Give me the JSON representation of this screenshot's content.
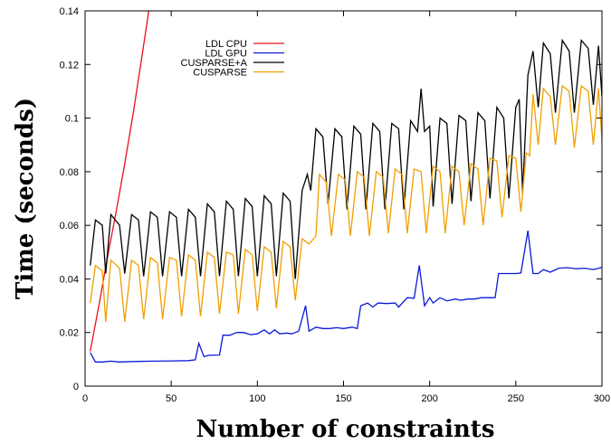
{
  "chart_data": {
    "type": "line",
    "title": "",
    "xlabel": "Number of constraints",
    "ylabel": "Time (seconds)",
    "xlim": [
      0,
      300
    ],
    "ylim": [
      0,
      0.14
    ],
    "xticks": [
      "0",
      "50",
      "100",
      "150",
      "200",
      "250",
      "300"
    ],
    "yticks": [
      "0",
      "0.02",
      "0.04",
      "0.06",
      "0.08",
      "0.1",
      "0.12",
      "0.14"
    ],
    "grid": false,
    "legend_position": "top-left",
    "series": [
      {
        "name": "LDL CPU",
        "color": "#e8101a",
        "points": [
          [
            3,
            0.013
          ],
          [
            8,
            0.03
          ],
          [
            13,
            0.048
          ],
          [
            18,
            0.065
          ],
          [
            23,
            0.083
          ],
          [
            28,
            0.102
          ],
          [
            33,
            0.123
          ],
          [
            37,
            0.14
          ]
        ]
      },
      {
        "name": "LDL GPU",
        "color": "#0b19d6",
        "points": [
          [
            3,
            0.0125
          ],
          [
            6,
            0.009
          ],
          [
            10,
            0.009
          ],
          [
            15,
            0.0093
          ],
          [
            20,
            0.009
          ],
          [
            30,
            0.0092
          ],
          [
            40,
            0.0093
          ],
          [
            50,
            0.0094
          ],
          [
            60,
            0.0095
          ],
          [
            64,
            0.0098
          ],
          [
            66,
            0.016
          ],
          [
            69,
            0.011
          ],
          [
            72,
            0.0115
          ],
          [
            78,
            0.0116
          ],
          [
            80,
            0.019
          ],
          [
            84,
            0.019
          ],
          [
            88,
            0.02
          ],
          [
            92,
            0.02
          ],
          [
            96,
            0.0192
          ],
          [
            100,
            0.0195
          ],
          [
            104,
            0.021
          ],
          [
            107,
            0.0195
          ],
          [
            110,
            0.021
          ],
          [
            113,
            0.0195
          ],
          [
            117,
            0.0198
          ],
          [
            120,
            0.0195
          ],
          [
            124,
            0.0205
          ],
          [
            128,
            0.03
          ],
          [
            130,
            0.0205
          ],
          [
            134,
            0.022
          ],
          [
            138,
            0.0215
          ],
          [
            142,
            0.0215
          ],
          [
            146,
            0.0218
          ],
          [
            150,
            0.0215
          ],
          [
            155,
            0.022
          ],
          [
            158,
            0.0215
          ],
          [
            160,
            0.03
          ],
          [
            164,
            0.031
          ],
          [
            167,
            0.0295
          ],
          [
            170,
            0.031
          ],
          [
            175,
            0.0308
          ],
          [
            180,
            0.031
          ],
          [
            182,
            0.0295
          ],
          [
            187,
            0.033
          ],
          [
            191,
            0.0328
          ],
          [
            194,
            0.045
          ],
          [
            197,
            0.03
          ],
          [
            200,
            0.033
          ],
          [
            202,
            0.031
          ],
          [
            206,
            0.033
          ],
          [
            210,
            0.0318
          ],
          [
            215,
            0.0325
          ],
          [
            218,
            0.032
          ],
          [
            222,
            0.0325
          ],
          [
            226,
            0.0325
          ],
          [
            230,
            0.033
          ],
          [
            235,
            0.033
          ],
          [
            238,
            0.033
          ],
          [
            240,
            0.042
          ],
          [
            245,
            0.042
          ],
          [
            250,
            0.042
          ],
          [
            253,
            0.0422
          ],
          [
            257,
            0.058
          ],
          [
            260,
            0.042
          ],
          [
            263,
            0.042
          ],
          [
            266,
            0.0435
          ],
          [
            270,
            0.0425
          ],
          [
            275,
            0.044
          ],
          [
            280,
            0.0442
          ],
          [
            285,
            0.0438
          ],
          [
            290,
            0.044
          ],
          [
            295,
            0.0435
          ],
          [
            300,
            0.0443
          ]
        ]
      },
      {
        "name": "CUSPARSE+A",
        "color": "#000000",
        "points": [
          [
            3,
            0.045
          ],
          [
            6,
            0.062
          ],
          [
            10,
            0.06
          ],
          [
            12,
            0.042
          ],
          [
            15,
            0.064
          ],
          [
            20,
            0.06
          ],
          [
            23,
            0.042
          ],
          [
            27,
            0.064
          ],
          [
            31,
            0.062
          ],
          [
            34,
            0.041
          ],
          [
            38,
            0.065
          ],
          [
            42,
            0.063
          ],
          [
            45,
            0.041
          ],
          [
            49,
            0.065
          ],
          [
            53,
            0.063
          ],
          [
            56,
            0.041
          ],
          [
            60,
            0.066
          ],
          [
            64,
            0.063
          ],
          [
            67,
            0.041
          ],
          [
            71,
            0.068
          ],
          [
            75,
            0.065
          ],
          [
            78,
            0.041
          ],
          [
            82,
            0.069
          ],
          [
            86,
            0.066
          ],
          [
            89,
            0.041
          ],
          [
            93,
            0.07
          ],
          [
            97,
            0.067
          ],
          [
            100,
            0.041
          ],
          [
            104,
            0.071
          ],
          [
            108,
            0.068
          ],
          [
            111,
            0.041
          ],
          [
            115,
            0.072
          ],
          [
            119,
            0.069
          ],
          [
            122,
            0.04
          ],
          [
            126,
            0.073
          ],
          [
            129,
            0.079
          ],
          [
            131,
            0.073
          ],
          [
            134,
            0.096
          ],
          [
            138,
            0.093
          ],
          [
            141,
            0.068
          ],
          [
            145,
            0.096
          ],
          [
            149,
            0.093
          ],
          [
            152,
            0.066
          ],
          [
            156,
            0.097
          ],
          [
            160,
            0.094
          ],
          [
            163,
            0.066
          ],
          [
            167,
            0.098
          ],
          [
            171,
            0.095
          ],
          [
            174,
            0.066
          ],
          [
            178,
            0.098
          ],
          [
            182,
            0.096
          ],
          [
            185,
            0.066
          ],
          [
            189,
            0.099
          ],
          [
            193,
            0.095
          ],
          [
            195,
            0.111
          ],
          [
            197,
            0.095
          ],
          [
            200,
            0.097
          ],
          [
            202,
            0.067
          ],
          [
            206,
            0.1
          ],
          [
            210,
            0.098
          ],
          [
            213,
            0.068
          ],
          [
            217,
            0.101
          ],
          [
            221,
            0.099
          ],
          [
            224,
            0.069
          ],
          [
            228,
            0.102
          ],
          [
            232,
            0.099
          ],
          [
            235,
            0.07
          ],
          [
            239,
            0.104
          ],
          [
            243,
            0.1
          ],
          [
            246,
            0.07
          ],
          [
            250,
            0.104
          ],
          [
            252,
            0.107
          ],
          [
            254,
            0.072
          ],
          [
            257,
            0.116
          ],
          [
            260,
            0.125
          ],
          [
            263,
            0.104
          ],
          [
            266,
            0.128
          ],
          [
            270,
            0.124
          ],
          [
            273,
            0.102
          ],
          [
            277,
            0.129
          ],
          [
            281,
            0.125
          ],
          [
            284,
            0.102
          ],
          [
            288,
            0.129
          ],
          [
            292,
            0.126
          ],
          [
            295,
            0.105
          ],
          [
            298,
            0.127
          ],
          [
            300,
            0.108
          ]
        ]
      },
      {
        "name": "CUSPARSE",
        "color": "#f0a000",
        "points": [
          [
            3,
            0.031
          ],
          [
            6,
            0.045
          ],
          [
            10,
            0.043
          ],
          [
            12,
            0.024
          ],
          [
            15,
            0.047
          ],
          [
            20,
            0.044
          ],
          [
            23,
            0.024
          ],
          [
            27,
            0.047
          ],
          [
            31,
            0.045
          ],
          [
            34,
            0.025
          ],
          [
            38,
            0.048
          ],
          [
            42,
            0.046
          ],
          [
            45,
            0.025
          ],
          [
            49,
            0.048
          ],
          [
            53,
            0.047
          ],
          [
            56,
            0.026
          ],
          [
            60,
            0.049
          ],
          [
            64,
            0.047
          ],
          [
            67,
            0.026
          ],
          [
            71,
            0.05
          ],
          [
            75,
            0.048
          ],
          [
            78,
            0.027
          ],
          [
            82,
            0.05
          ],
          [
            86,
            0.049
          ],
          [
            89,
            0.027
          ],
          [
            93,
            0.051
          ],
          [
            97,
            0.049
          ],
          [
            100,
            0.028
          ],
          [
            104,
            0.052
          ],
          [
            108,
            0.05
          ],
          [
            111,
            0.029
          ],
          [
            115,
            0.054
          ],
          [
            119,
            0.052
          ],
          [
            122,
            0.032
          ],
          [
            126,
            0.055
          ],
          [
            130,
            0.053
          ],
          [
            134,
            0.056
          ],
          [
            136,
            0.079
          ],
          [
            140,
            0.076
          ],
          [
            143,
            0.056
          ],
          [
            147,
            0.079
          ],
          [
            151,
            0.077
          ],
          [
            154,
            0.056
          ],
          [
            158,
            0.08
          ],
          [
            162,
            0.078
          ],
          [
            165,
            0.056
          ],
          [
            169,
            0.08
          ],
          [
            173,
            0.078
          ],
          [
            176,
            0.057
          ],
          [
            180,
            0.081
          ],
          [
            184,
            0.079
          ],
          [
            187,
            0.057
          ],
          [
            191,
            0.081
          ],
          [
            195,
            0.08
          ],
          [
            198,
            0.057
          ],
          [
            202,
            0.082
          ],
          [
            206,
            0.08
          ],
          [
            209,
            0.057
          ],
          [
            213,
            0.082
          ],
          [
            217,
            0.08
          ],
          [
            220,
            0.06
          ],
          [
            224,
            0.083
          ],
          [
            228,
            0.081
          ],
          [
            231,
            0.06
          ],
          [
            235,
            0.085
          ],
          [
            239,
            0.084
          ],
          [
            242,
            0.063
          ],
          [
            246,
            0.086
          ],
          [
            250,
            0.085
          ],
          [
            253,
            0.065
          ],
          [
            256,
            0.087
          ],
          [
            258,
            0.086
          ],
          [
            260,
            0.109
          ],
          [
            263,
            0.09
          ],
          [
            266,
            0.111
          ],
          [
            270,
            0.108
          ],
          [
            273,
            0.09
          ],
          [
            277,
            0.112
          ],
          [
            281,
            0.11
          ],
          [
            284,
            0.089
          ],
          [
            288,
            0.112
          ],
          [
            292,
            0.11
          ],
          [
            295,
            0.09
          ],
          [
            298,
            0.111
          ],
          [
            300,
            0.092
          ]
        ]
      }
    ]
  }
}
